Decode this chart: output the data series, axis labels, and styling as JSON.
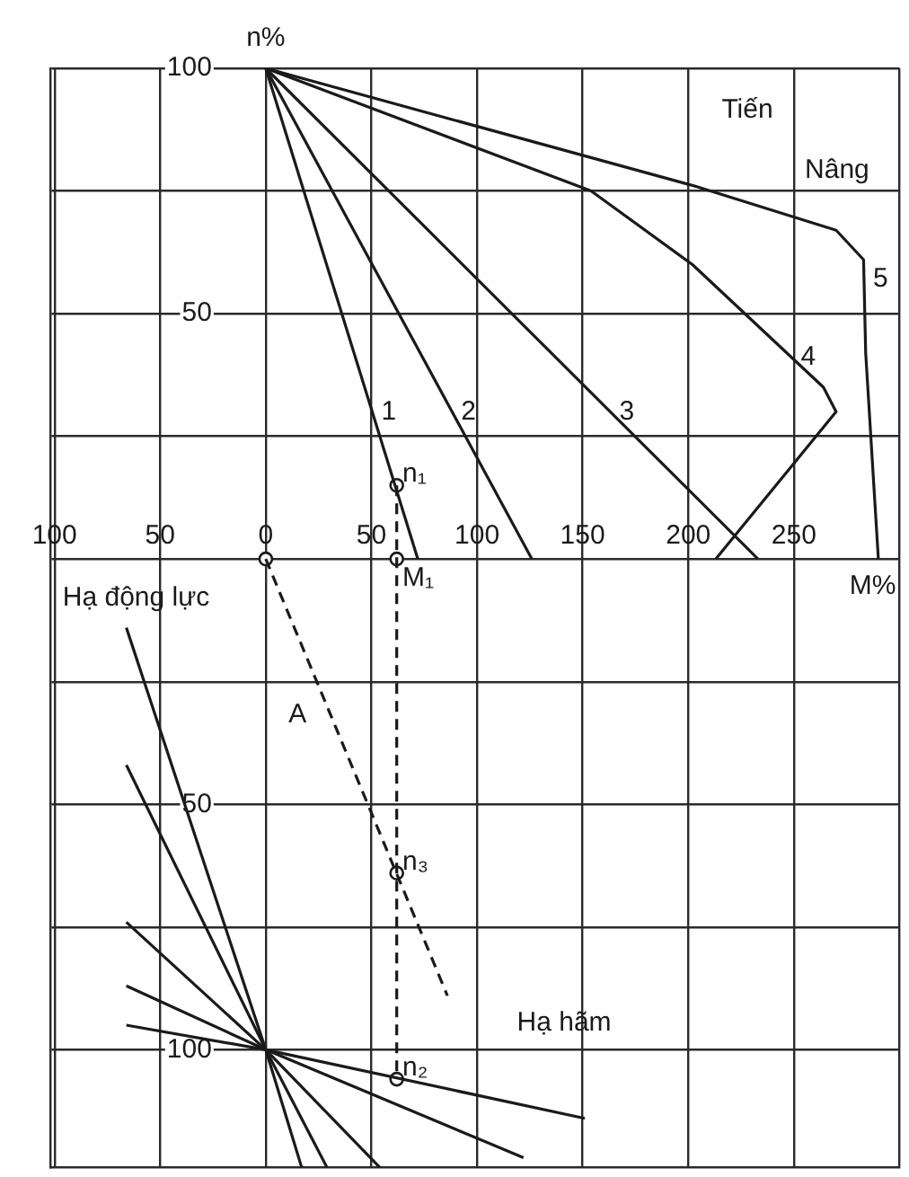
{
  "chart_data": {
    "type": "line",
    "xlabel": "M%",
    "ylabel": "n%",
    "xlim": [
      -102,
      300
    ],
    "ylim": [
      -124,
      100
    ],
    "xticks": [
      {
        "value": -100,
        "label": "100"
      },
      {
        "value": -50,
        "label": "50"
      },
      0,
      50,
      100,
      150,
      200,
      250,
      {
        "value": 300,
        "label": null
      }
    ],
    "yticks": [
      100,
      {
        "value": 75,
        "label": null
      },
      50,
      {
        "value": 25,
        "label": null
      },
      {
        "value": 0,
        "label": null
      },
      {
        "value": -25,
        "label": null
      },
      {
        "value": -50,
        "label": "50"
      },
      {
        "value": -75,
        "label": null
      },
      {
        "value": -100,
        "label": "100"
      }
    ],
    "grid": true,
    "series": [
      {
        "name": "1",
        "color": "#1a1a1a",
        "x": [
          0,
          72
        ],
        "values": [
          100,
          0
        ]
      },
      {
        "name": "2",
        "color": "#1a1a1a",
        "x": [
          0,
          126
        ],
        "values": [
          100,
          0
        ]
      },
      {
        "name": "3",
        "color": "#1a1a1a",
        "x": [
          0,
          233
        ],
        "values": [
          100,
          0
        ]
      },
      {
        "name": "4",
        "color": "#1a1a1a",
        "x": [
          0,
          154,
          202,
          264,
          270,
          213
        ],
        "values": [
          100,
          75,
          60,
          35,
          30,
          0
        ]
      },
      {
        "name": "5",
        "color": "#1a1a1a",
        "x": [
          0,
          203,
          270,
          283,
          284,
          290
        ],
        "values": [
          100,
          76,
          67,
          61,
          42,
          0
        ]
      },
      {
        "color": "#1a1a1a",
        "x": [
          -66,
          0,
          17
        ],
        "values": [
          -14,
          -100,
          -124
        ]
      },
      {
        "color": "#1a1a1a",
        "x": [
          -66,
          0,
          29
        ],
        "values": [
          -42,
          -100,
          -124
        ]
      },
      {
        "color": "#1a1a1a",
        "x": [
          -66,
          0,
          54
        ],
        "values": [
          -74,
          -100,
          -124
        ]
      },
      {
        "color": "#1a1a1a",
        "x": [
          -66,
          0,
          122
        ],
        "values": [
          -87,
          -100,
          -122
        ]
      },
      {
        "color": "#1a1a1a",
        "x": [
          -66,
          0,
          151
        ],
        "values": [
          -95,
          -100,
          -114
        ]
      },
      {
        "color": "#1a1a1a",
        "x": [
          0,
          86
        ],
        "values": [
          0,
          -89
        ],
        "line_style": "dashed"
      },
      {
        "color": "#1a1a1a",
        "x": [
          62,
          62
        ],
        "values": [
          15,
          -106
        ],
        "line_style": "dashed"
      },
      {
        "type": "scatter",
        "color": "#1a1a1a",
        "marker": "circle",
        "x": [
          0,
          62,
          62,
          62,
          62
        ],
        "values": [
          0,
          15,
          0,
          -64,
          -106
        ]
      }
    ],
    "annotations": [
      "Tiến",
      "Nâng",
      "Hạ động lực",
      "Hạ hãm",
      "A",
      "n₁",
      "M₁",
      "n₃",
      "n₂"
    ]
  }
}
